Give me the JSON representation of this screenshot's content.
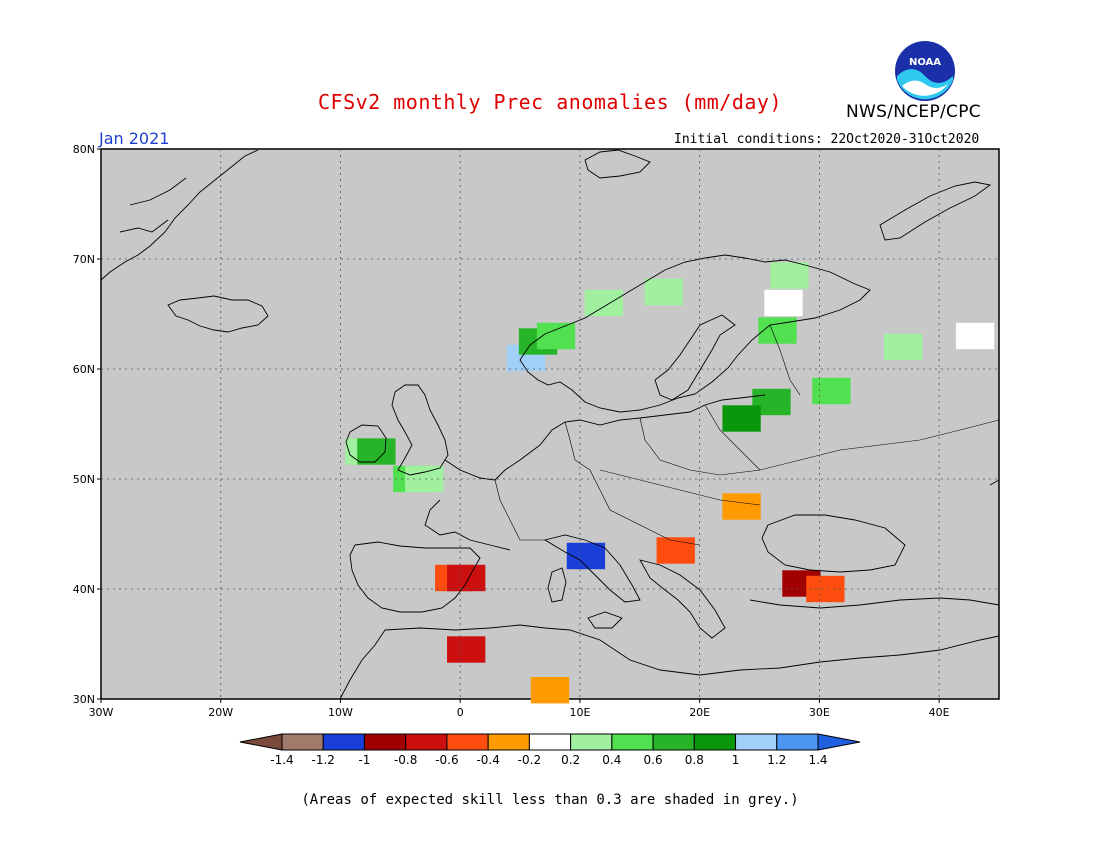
{
  "title": "CFSv2 monthly Prec anomalies (mm/day)",
  "agency": "NWS/NCEP/CPC",
  "logo_text": "NOAA",
  "month": "Jan 2021",
  "initial_conditions": "Initial conditions: 22Oct2020-31Oct2020",
  "footnote": "(Areas of expected skill less than 0.3 are shaded in grey.)",
  "map": {
    "lon_range": [
      -30,
      45
    ],
    "lat_range": [
      30,
      80
    ],
    "lon_labels": [
      "30W",
      "20W",
      "10W",
      "0",
      "10E",
      "20E",
      "30E",
      "40E"
    ],
    "lat_labels": [
      "80N",
      "70N",
      "60N",
      "50N",
      "40N",
      "30N"
    ],
    "land_color": "#c8c8c8",
    "grid": "dotted"
  },
  "colorbar": {
    "labels": [
      "-1.4",
      "-1.2",
      "-1",
      "-0.8",
      "-0.6",
      "-0.4",
      "-0.2",
      "0.2",
      "0.4",
      "0.6",
      "0.8",
      "1",
      "1.2",
      "1.4"
    ],
    "colors": [
      "#7a4a3a",
      "#a07a6a",
      "#1a3fd8",
      "#a00000",
      "#cc1010",
      "#ff4d10",
      "#ff9a00",
      "#ffffff",
      "#a0f0a0",
      "#50e050",
      "#28b428",
      "#0a960a",
      "#a0d0f8",
      "#4a96f0",
      "#2060e0"
    ]
  },
  "anomaly_cells": [
    {
      "lon": -8.0,
      "lat": 52.5,
      "value": 0.4
    },
    {
      "lon": -7.0,
      "lat": 52.5,
      "value": 0.8
    },
    {
      "lon": -4.0,
      "lat": 50.0,
      "value": 0.6
    },
    {
      "lon": -3.0,
      "lat": 50.0,
      "value": 0.4
    },
    {
      "lon": 5.5,
      "lat": 61.0,
      "value": 1.2
    },
    {
      "lon": 6.5,
      "lat": 62.5,
      "value": 0.8
    },
    {
      "lon": 8.0,
      "lat": 63.0,
      "value": 0.6
    },
    {
      "lon": 12.0,
      "lat": 66.0,
      "value": 0.4
    },
    {
      "lon": 17.0,
      "lat": 67.0,
      "value": 0.4
    },
    {
      "lon": 27.0,
      "lat": 66.0,
      "value": 0.2
    },
    {
      "lon": 27.5,
      "lat": 68.5,
      "value": 0.4
    },
    {
      "lon": 26.5,
      "lat": 63.5,
      "value": 0.6
    },
    {
      "lon": 37.0,
      "lat": 62.0,
      "value": 0.4
    },
    {
      "lon": 43.0,
      "lat": 63.0,
      "value": 0.2
    },
    {
      "lon": 31.0,
      "lat": 58.0,
      "value": 0.6
    },
    {
      "lon": 26.0,
      "lat": 57.0,
      "value": 0.8
    },
    {
      "lon": 23.5,
      "lat": 55.5,
      "value": 1.0
    },
    {
      "lon": -0.5,
      "lat": 41.0,
      "value": -0.4
    },
    {
      "lon": 0.5,
      "lat": 41.0,
      "value": -0.6
    },
    {
      "lon": 10.5,
      "lat": 43.0,
      "value": -1.0
    },
    {
      "lon": 18.0,
      "lat": 43.5,
      "value": -0.4
    },
    {
      "lon": 28.5,
      "lat": 40.5,
      "value": -0.8
    },
    {
      "lon": 30.5,
      "lat": 40.0,
      "value": -0.4
    },
    {
      "lon": 0.5,
      "lat": 34.5,
      "value": -0.6
    },
    {
      "lon": 23.5,
      "lat": 47.5,
      "value": -0.2
    },
    {
      "lon": 7.5,
      "lat": 30.8,
      "value": -0.2
    }
  ]
}
